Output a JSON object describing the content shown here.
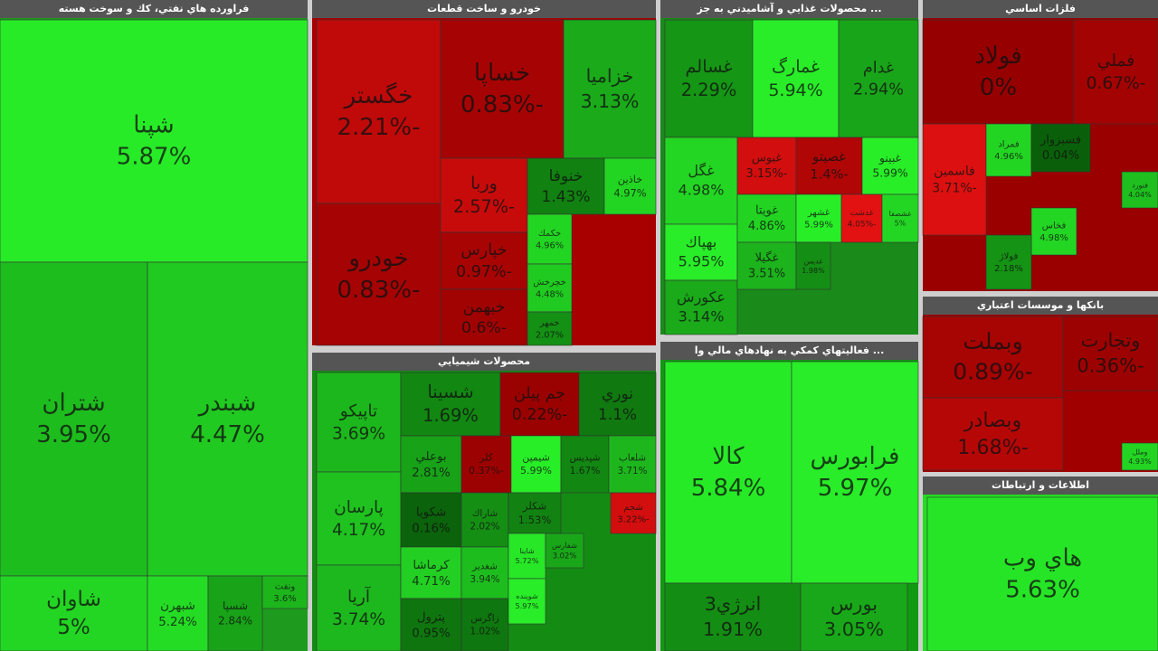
{
  "chart_data": {
    "type": "treemap",
    "groups": [
      {
        "name": "فراورده هاي نفتي، كك و سوخت هسته",
        "labels": [
          "شپنا",
          "شتران",
          "شبندر",
          "شاوان",
          "شبهرن",
          "شسپا",
          "ونفت"
        ],
        "values": [
          5.87,
          3.95,
          4.47,
          5,
          5.24,
          2.84,
          3.6
        ],
        "value_labels": [
          "5.87%",
          "3.95%",
          "4.47%",
          "5%",
          "5.24%",
          "2.84%",
          "3.6%"
        ]
      },
      {
        "name": "خودرو و ساخت قطعات",
        "labels": [
          "خگستر",
          "خساپا",
          "خزاميا",
          "خودرو",
          "وربا",
          "خنوفا",
          "خاذين",
          "خپارس",
          "خبهمن",
          "خكمك",
          "خچرخش",
          "خمهر"
        ],
        "values": [
          -2.21,
          -0.83,
          3.13,
          -0.83,
          -2.57,
          1.43,
          4.97,
          -0.97,
          -0.6,
          4.96,
          4.48,
          2.07
        ],
        "value_labels": [
          "-2.21%",
          "-0.83%",
          "3.13%",
          "-0.83%",
          "-2.57%",
          "1.43%",
          "4.97%",
          "-0.97%",
          "-0.6%",
          "4.96%",
          "4.48%",
          "2.07%"
        ]
      },
      {
        "name": "... محصولات غذايي و آشاميدني به جز",
        "labels": [
          "غسالم",
          "غمارگ",
          "غدام",
          "غگل",
          "غبوس",
          "غصيتو",
          "غبينو",
          "بهپاك",
          "عكورش",
          "غويتا",
          "غشهر",
          "غدشت",
          "غشصفا",
          "غگيلا",
          "غديس"
        ],
        "values": [
          2.29,
          5.94,
          2.94,
          4.98,
          -3.15,
          -1.4,
          5.99,
          5.95,
          3.14,
          4.86,
          5.99,
          -4.05,
          5,
          3.51,
          1.98
        ],
        "value_labels": [
          "2.29%",
          "5.94%",
          "2.94%",
          "4.98%",
          "-3.15%",
          "-1.4%",
          "5.99%",
          "5.95%",
          "3.14%",
          "4.86%",
          "5.99%",
          "-4.05%",
          "5%",
          "3.51%",
          "1.98%"
        ]
      },
      {
        "name": "فلزات اساسي",
        "labels": [
          "فولاد",
          "فملي",
          "فاسمين",
          "فمراد",
          "فسبزوار",
          "فخاس",
          "فولاژ",
          "فنورد"
        ],
        "values": [
          0,
          -0.67,
          -3.71,
          4.96,
          0.04,
          4.98,
          2.18,
          4.04
        ],
        "value_labels": [
          "0%",
          "-0.67%",
          "-3.71%",
          "4.96%",
          "0.04%",
          "4.98%",
          "2.18%",
          "4.04%"
        ]
      },
      {
        "name": "بانكها و موسسات اعتباري",
        "labels": [
          "وبملت",
          "وتجارت",
          "وبصادر",
          "وملل"
        ],
        "values": [
          -0.89,
          -0.36,
          -1.68,
          4.93
        ],
        "value_labels": [
          "-0.89%",
          "-0.36%",
          "-1.68%",
          "4.93%"
        ]
      },
      {
        "name": "اطلاعات و ارتباطات",
        "labels": [
          "هاي وب"
        ],
        "values": [
          5.63
        ],
        "value_labels": [
          "5.63%"
        ]
      },
      {
        "name": "محصولات شيميايي",
        "labels": [
          "تاپيكو",
          "پارسان",
          "آريا",
          "شسينا",
          "جم پيلن",
          "نوري",
          "بوعلي",
          "كلر",
          "شيمپن",
          "شپديس",
          "شلعاب",
          "شكويا",
          "شاراك",
          "شكلر",
          "شجم",
          "كرماشا",
          "شغدير",
          "شاينا",
          "شفارس",
          "پترول",
          "زاگرس",
          "شوينده"
        ],
        "values": [
          3.69,
          4.17,
          3.74,
          1.69,
          -0.22,
          1.1,
          2.81,
          -0.37,
          5.99,
          1.67,
          3.71,
          0.16,
          2.02,
          1.53,
          -3.22,
          4.71,
          3.94,
          5.72,
          3.02,
          0.95,
          1.02,
          5.97
        ],
        "value_labels": [
          "3.69%",
          "4.17%",
          "3.74%",
          "1.69%",
          "-0.22%",
          "1.1%",
          "2.81%",
          "-0.37%",
          "5.99%",
          "1.67%",
          "3.71%",
          "0.16%",
          "2.02%",
          "1.53%",
          "-3.22%",
          "4.71%",
          "3.94%",
          "5.72%",
          "3.02%",
          "0.95%",
          "1.02%",
          "5.97%"
        ]
      },
      {
        "name": "... فعاليتهاي كمكي به نهادهاي مالي وا",
        "labels": [
          "كالا",
          "فرابورس",
          "انرژي3",
          "بورس"
        ],
        "values": [
          5.84,
          5.97,
          1.91,
          3.05
        ],
        "value_labels": [
          "5.84%",
          "5.97%",
          "1.91%",
          "3.05%"
        ]
      }
    ]
  }
}
